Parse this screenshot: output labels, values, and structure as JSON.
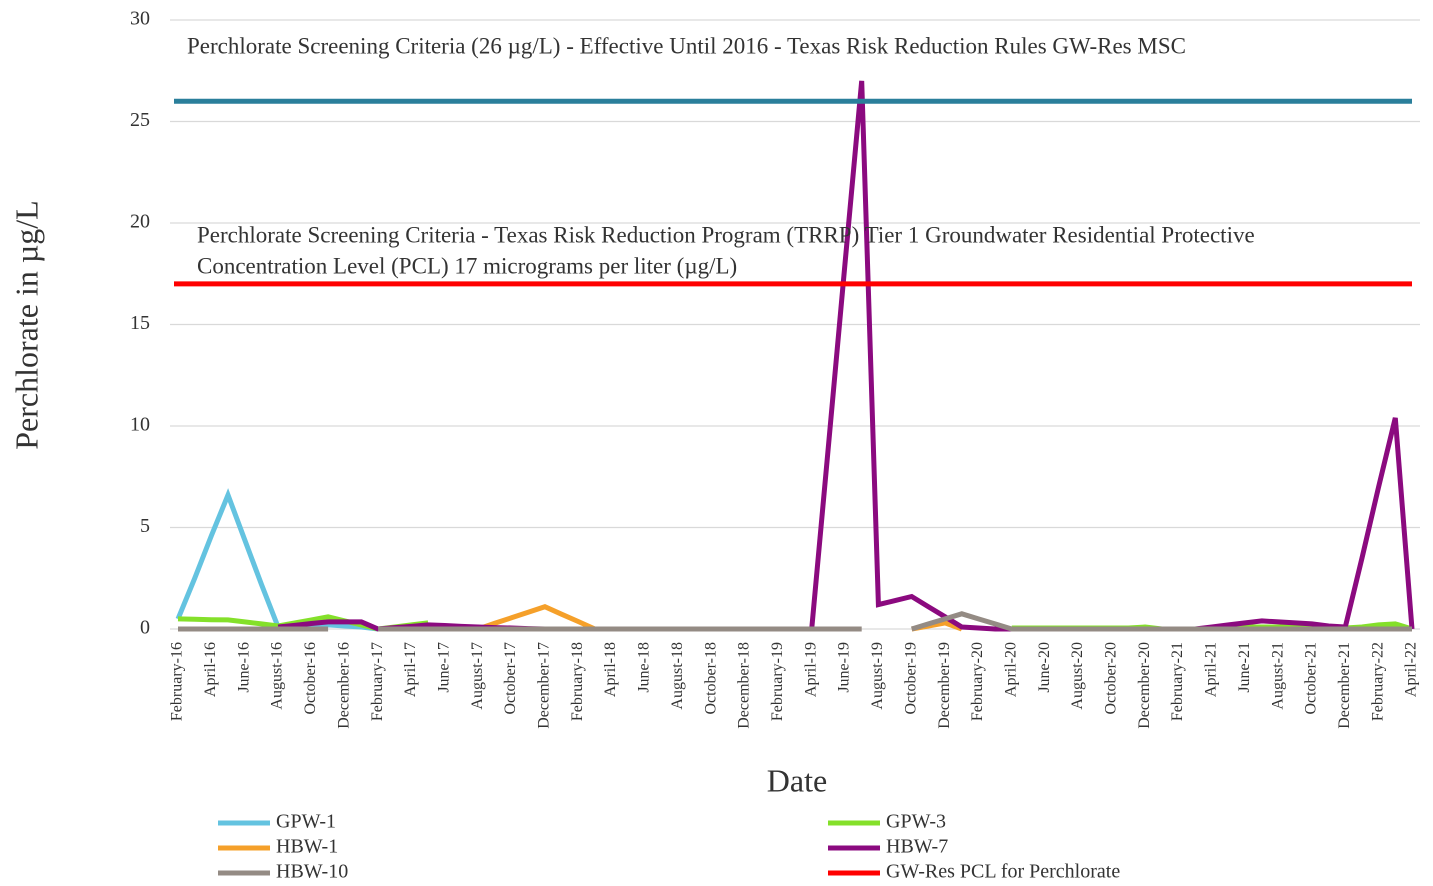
{
  "chart_data": {
    "type": "line",
    "y_label": "Perchlorate in µg/L",
    "x_label": "Date",
    "ylim": [
      0,
      30
    ],
    "yticks": [
      0,
      5,
      10,
      15,
      20,
      25,
      30
    ],
    "grid": true,
    "legend": "bottom",
    "categories": [
      "February-16",
      null,
      "April-16",
      null,
      "June-16",
      null,
      "August-16",
      null,
      "October-16",
      null,
      "December-16",
      null,
      "February-17",
      null,
      "April-17",
      null,
      "June-17",
      null,
      "August-17",
      null,
      "October-17",
      null,
      "December-17",
      null,
      "February-18",
      null,
      "April-18",
      null,
      "June-18",
      null,
      "August-18",
      null,
      "October-18",
      null,
      "December-18",
      null,
      "February-19",
      null,
      "April-19",
      null,
      "June-19",
      null,
      "August-19",
      null,
      "October-19",
      null,
      "December-19",
      null,
      "February-20",
      null,
      "April-20",
      null,
      "June-20",
      null,
      "August-20",
      null,
      "October-20",
      null,
      "December-20",
      null,
      "February-21",
      null,
      "April-21",
      null,
      "June-21",
      null,
      "August-21",
      null,
      "October-21",
      null,
      "December-21",
      null,
      "February-22",
      null,
      "April-22"
    ],
    "series": [
      {
        "name": "GPW-1",
        "color": "#64c3e0",
        "values": [
          0.5,
          2.5,
          4.6,
          6.6,
          4.4,
          2.2,
          0.1,
          0.1,
          0.15,
          0.2,
          0.15,
          0.1,
          0,
          null,
          null,
          null,
          null,
          null,
          null,
          null,
          null,
          null,
          null,
          null,
          null,
          null,
          null,
          null,
          null,
          null,
          null,
          null,
          null,
          null,
          null,
          null,
          null,
          null,
          null,
          null,
          null,
          null,
          null,
          null,
          null,
          null,
          null,
          null,
          null,
          null,
          null,
          null,
          null,
          null,
          null,
          null,
          null,
          null,
          null,
          null,
          null,
          null,
          null,
          null,
          null,
          null,
          null,
          null,
          null,
          null,
          null,
          null,
          null,
          null,
          null
        ]
      },
      {
        "name": "GPW-3",
        "color": "#84e02a",
        "values": [
          0.5,
          0.48,
          0.46,
          0.45,
          0.35,
          0.25,
          0.15,
          0.3,
          0.45,
          0.6,
          0.4,
          0.2,
          0,
          0.1,
          0.2,
          0.3,
          null,
          null,
          null,
          null,
          null,
          null,
          null,
          null,
          null,
          null,
          null,
          null,
          null,
          null,
          null,
          null,
          null,
          null,
          null,
          null,
          null,
          null,
          null,
          null,
          null,
          null,
          null,
          null,
          null,
          null,
          null,
          null,
          null,
          null,
          0.05,
          0.05,
          0.05,
          0.05,
          0.05,
          0.05,
          0.05,
          0.05,
          0.1,
          0,
          0,
          0,
          0,
          0,
          0.1,
          0.1,
          0.1,
          0.1,
          0.1,
          0.1,
          0.05,
          0.1,
          0.2,
          0.25,
          0
        ]
      },
      {
        "name": "HBW-1",
        "color": "#f5a02a",
        "values": [
          null,
          null,
          null,
          null,
          null,
          null,
          null,
          null,
          null,
          null,
          null,
          null,
          null,
          null,
          null,
          null,
          null,
          null,
          0,
          0.28,
          0.55,
          0.83,
          1.1,
          0.73,
          0.37,
          0,
          null,
          null,
          null,
          null,
          null,
          null,
          null,
          null,
          null,
          null,
          null,
          null,
          null,
          null,
          null,
          null,
          null,
          null,
          0,
          0.15,
          0.3,
          0,
          null,
          null,
          null,
          null,
          null,
          null,
          null,
          null,
          null,
          null,
          null,
          null,
          null,
          null,
          null,
          null,
          null,
          null,
          null,
          null,
          null,
          null,
          null,
          null,
          null,
          null,
          null
        ]
      },
      {
        "name": "HBW-7",
        "color": "#8b0a7f",
        "values": [
          null,
          null,
          null,
          null,
          null,
          null,
          0.1,
          0.18,
          0.27,
          0.35,
          0.35,
          0.35,
          0,
          0.07,
          0.13,
          0.2,
          0.17,
          0.13,
          0.1,
          0.07,
          0.05,
          0.02,
          0,
          0,
          0,
          0,
          0,
          0,
          0,
          0,
          0,
          0,
          0,
          0,
          0,
          0,
          0,
          0,
          0,
          9,
          18,
          27,
          1.2,
          1.4,
          1.6,
          1.1,
          0.6,
          0.1,
          0.05,
          0,
          0,
          0,
          0,
          0,
          0,
          0,
          0,
          0,
          0,
          0,
          0,
          0,
          0.1,
          0.2,
          0.3,
          0.4,
          0.35,
          0.3,
          0.25,
          0.15,
          0.1,
          3.5,
          7,
          10.4,
          0
        ]
      },
      {
        "name": "HBW-10",
        "color": "#948b84",
        "values": [
          0,
          0,
          0,
          0,
          0,
          0,
          0,
          0,
          0,
          0,
          null,
          null,
          0,
          0,
          0,
          0,
          0,
          0,
          0,
          0,
          0,
          0,
          0,
          0,
          0,
          0,
          0,
          0,
          0,
          0,
          0,
          0,
          0,
          0,
          0,
          0,
          0,
          0,
          0,
          0,
          0,
          0,
          null,
          null,
          0,
          0.25,
          0.5,
          0.75,
          0.5,
          0.25,
          0,
          0,
          0,
          0,
          0,
          0,
          0,
          0,
          0,
          0,
          0,
          0,
          0,
          0,
          0,
          0,
          0,
          0,
          0,
          0,
          0,
          0,
          0,
          0,
          0
        ]
      }
    ],
    "reference_lines": [
      {
        "value": 26,
        "color": "#2a7f9b",
        "label_lines": [
          "Perchlorate Screening Criteria (26 µg/L) - Effective Until 2016 - Texas Risk Reduction Rules GW-Res MSC"
        ]
      },
      {
        "value": 17,
        "color": "#ff0000",
        "name": "GW-Res PCL for Perchlorate",
        "label_lines": [
          "Perchlorate Screening Criteria - Texas Risk Reduction Program (TRRP) Tier 1 Groundwater Residential Protective",
          "Concentration Level (PCL) 17 micrograms per liter (µg/L)"
        ]
      }
    ]
  }
}
